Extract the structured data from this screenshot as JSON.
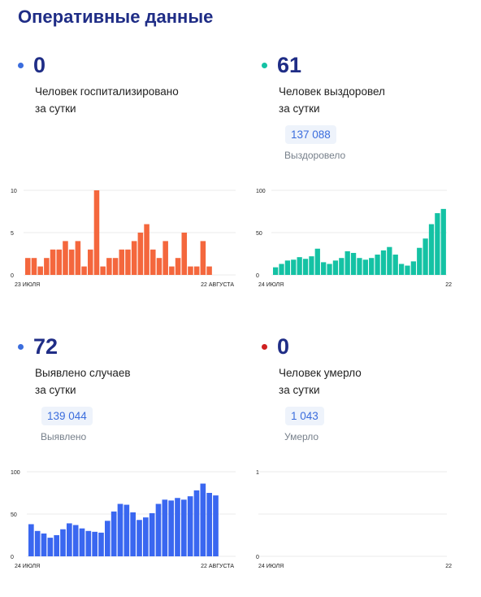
{
  "page": {
    "title": "Оперативные данные"
  },
  "cards": [
    {
      "value": "0",
      "dot_color": "#3b6ddd",
      "line1": "Человек госпитализировано",
      "line2": "за сутки",
      "total": "",
      "total_label": "",
      "chart": {
        "x_start": "23 ИЮЛЯ",
        "x_end": "22 АВГУСТА",
        "y_ticks": [
          "10",
          "5",
          "0"
        ]
      }
    },
    {
      "value": "61",
      "dot_color": "#14c2a4",
      "line1": "Человек выздоровел",
      "line2": "за сутки",
      "total": "137 088",
      "total_label": "Выздоровело",
      "chart": {
        "x_start": "24 ИЮЛЯ",
        "x_end": "22",
        "y_ticks": [
          "100",
          "50",
          "0"
        ]
      }
    },
    {
      "value": "72",
      "dot_color": "#3b6ddd",
      "line1": "Выявлено случаев",
      "line2": "за сутки",
      "total": "139 044",
      "total_label": "Выявлено",
      "chart": {
        "x_start": "24 ИЮЛЯ",
        "x_end": "22 АВГУСТА",
        "y_ticks": [
          "100",
          "50",
          "0"
        ]
      }
    },
    {
      "value": "0",
      "dot_color": "#cf2020",
      "line1": "Человек умерло",
      "line2": "за сутки",
      "total": "1 043",
      "total_label": "Умерло",
      "chart": {
        "x_start": "24 ИЮЛЯ",
        "x_end": "22",
        "y_ticks": [
          "1",
          "",
          "0"
        ]
      }
    }
  ],
  "chart_data": [
    {
      "type": "bar",
      "color": "#f4673d",
      "ylim": [
        0,
        10
      ],
      "x_labels": [
        "23 ИЮЛЯ",
        "22 АВГУСТА"
      ],
      "values": [
        2,
        2,
        1,
        2,
        3,
        3,
        4,
        3,
        4,
        1,
        3,
        10,
        1,
        2,
        2,
        3,
        3,
        4,
        5,
        6,
        3,
        2,
        4,
        1,
        2,
        5,
        1,
        1,
        4,
        1
      ]
    },
    {
      "type": "bar",
      "color": "#14c2a4",
      "ylim": [
        0,
        100
      ],
      "x_labels": [
        "24 ИЮЛЯ",
        "22"
      ],
      "values": [
        9,
        13,
        17,
        18,
        21,
        19,
        22,
        31,
        15,
        13,
        17,
        20,
        28,
        26,
        20,
        18,
        20,
        24,
        29,
        33,
        24,
        13,
        11,
        16,
        32,
        43,
        60,
        73,
        78
      ]
    },
    {
      "type": "bar",
      "color": "#3a67f0",
      "ylim": [
        0,
        100
      ],
      "x_labels": [
        "24 ИЮЛЯ",
        "22 АВГУСТА"
      ],
      "values": [
        38,
        30,
        27,
        22,
        25,
        32,
        39,
        37,
        33,
        30,
        29,
        28,
        42,
        53,
        62,
        61,
        52,
        43,
        46,
        51,
        62,
        67,
        66,
        69,
        67,
        71,
        78,
        86,
        75,
        72
      ]
    },
    {
      "type": "bar",
      "color": "#3b6ddd",
      "ylim": [
        0,
        1
      ],
      "x_labels": [
        "24 ИЮЛЯ",
        "22"
      ],
      "values": []
    }
  ]
}
